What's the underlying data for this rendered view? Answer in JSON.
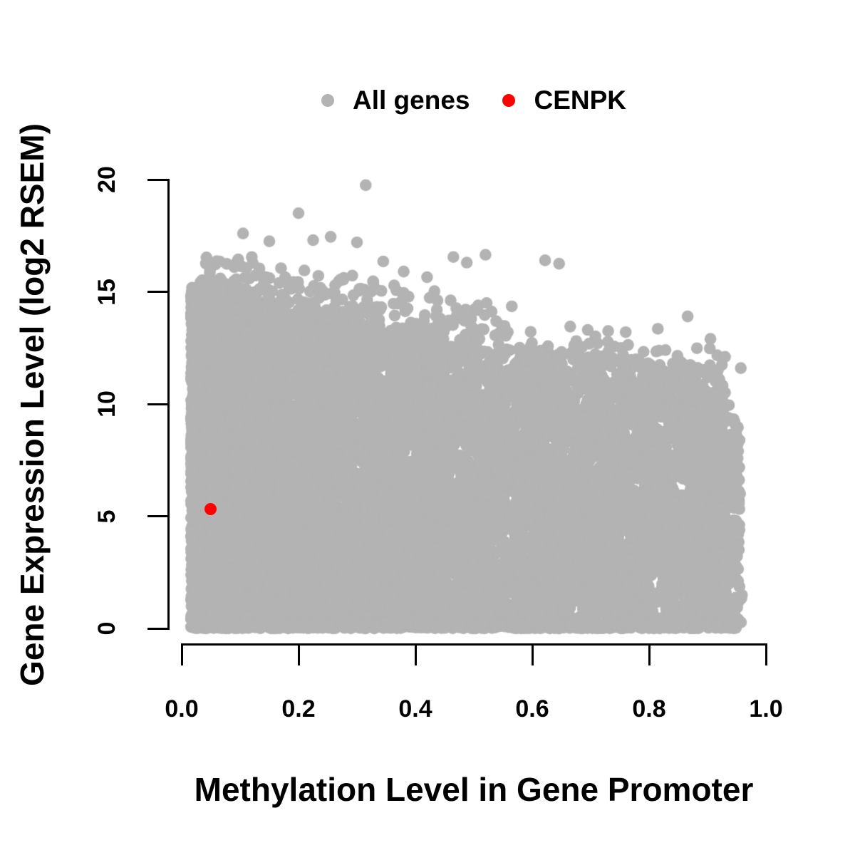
{
  "figure": {
    "background": "#ffffff",
    "axis_color": "#000000",
    "legend": {
      "position": "top-center",
      "items": [
        {
          "label": "All genes",
          "color": "#b3b3b3"
        },
        {
          "label": "CENPK",
          "color": "#ff0000"
        }
      ]
    }
  },
  "chart_data": {
    "type": "scatter",
    "title": "",
    "xlabel": "Methylation Level in Gene Promoter",
    "ylabel": "Gene Expression Level (log2 RSEM)",
    "xlim": [
      0,
      1
    ],
    "ylim": [
      0,
      20
    ],
    "x_ticks": {
      "labels": [
        "0.0",
        "0.2",
        "0.4",
        "0.6",
        "0.8",
        "1.0"
      ],
      "values": [
        0,
        0.2,
        0.4,
        0.6,
        0.8,
        1.0
      ]
    },
    "y_ticks": {
      "labels": [
        "0",
        "5",
        "10",
        "15",
        "20"
      ],
      "values": [
        0,
        5,
        10,
        15,
        20
      ]
    },
    "grid": false,
    "legend_position": "top-center",
    "series": [
      {
        "name": "All genes",
        "color": "#b3b3b3",
        "marker_radius_px": 8.3,
        "description": "Dense cloud of ~15000 genes; methylation 0.02-0.96; expression upper envelope falls from ~15.3 at low methylation to ~11.3 at high methylation; solid mass down to 0 with heavy baseline at expression 0; sparse outliers up to 19.8.",
        "generator": {
          "seed": 7,
          "x_clamp": [
            0.013,
            0.962
          ],
          "y_clamp": [
            0,
            19.9
          ],
          "blobs": [
            {
              "name": "left-wall",
              "n": 3200,
              "x": [
                0.016,
                0.13
              ],
              "xpow": 1.2,
              "ytop": [
                15.3,
                14.7
              ],
              "ybot": [
                0,
                0
              ],
              "edge": 0.45
            },
            {
              "name": "main-block",
              "n": 5600,
              "x": [
                0.05,
                0.45
              ],
              "xpow": 1.05,
              "ytop": [
                15.0,
                13.1
              ],
              "ybot": [
                0,
                0
              ],
              "edge": 0.5
            },
            {
              "name": "mid-right-block",
              "n": 4300,
              "x": [
                0.42,
                0.93
              ],
              "xpow": 1.0,
              "ytop": [
                12.5,
                11.3
              ],
              "ybot": [
                0,
                0
              ],
              "edge": 0.55
            },
            {
              "name": "right-edge",
              "n": 550,
              "x": [
                0.86,
                0.955
              ],
              "xpow": 0.85,
              "ytop": [
                11.0,
                9.0
              ],
              "ybot": [
                0,
                0
              ],
              "edge": 0.8
            },
            {
              "name": "zero-baseline",
              "n": 750,
              "x": [
                0.02,
                0.95
              ],
              "xpow": 1.0,
              "ytop": [
                0.25,
                0.25
              ],
              "ybot": [
                0,
                0
              ],
              "edge": 0.05
            },
            {
              "name": "upper-band-left",
              "n": 150,
              "x": [
                0.04,
                0.56
              ],
              "xpow": 1.1,
              "ytop": [
                16.6,
                14.6
              ],
              "ybot": [
                15.0,
                13.0
              ],
              "edge": 0.3
            },
            {
              "name": "upper-band-right",
              "n": 80,
              "x": [
                0.45,
                0.92
              ],
              "xpow": 1.0,
              "ytop": [
                13.6,
                12.4
              ],
              "ybot": [
                12.4,
                11.2
              ],
              "edge": 0.3
            },
            {
              "name": "far-right-sparse",
              "n": 28,
              "x": [
                0.925,
                0.962
              ],
              "xpow": 1.0,
              "ytop": [
                8.5,
                7.0
              ],
              "ybot": [
                0,
                0
              ],
              "edge": 0.5
            }
          ],
          "outliers": [
            [
              0.315,
              19.75
            ],
            [
              0.2,
              18.5
            ],
            [
              0.105,
              17.6
            ],
            [
              0.15,
              17.25
            ],
            [
              0.255,
              17.45
            ],
            [
              0.225,
              17.3
            ],
            [
              0.3,
              17.2
            ],
            [
              0.065,
              16.35
            ],
            [
              0.09,
              16.1
            ],
            [
              0.12,
              16.55
            ],
            [
              0.345,
              16.35
            ],
            [
              0.17,
              16.05
            ],
            [
              0.38,
              15.9
            ],
            [
              0.42,
              15.65
            ],
            [
              0.465,
              16.55
            ],
            [
              0.488,
              16.3
            ],
            [
              0.52,
              16.65
            ],
            [
              0.522,
              14.5
            ],
            [
              0.565,
              14.35
            ],
            [
              0.622,
              16.4
            ],
            [
              0.646,
              16.25
            ],
            [
              0.665,
              13.45
            ],
            [
              0.695,
              13.3
            ],
            [
              0.73,
              13.25
            ],
            [
              0.76,
              13.2
            ],
            [
              0.815,
              13.35
            ],
            [
              0.866,
              13.9
            ],
            [
              0.905,
              12.9
            ],
            [
              0.93,
              12.1
            ],
            [
              0.957,
              11.6
            ]
          ]
        }
      },
      {
        "name": "CENPK",
        "color": "#ff0000",
        "marker_radius_px": 8.6,
        "points": [
          [
            0.05,
            5.3
          ]
        ]
      }
    ]
  }
}
